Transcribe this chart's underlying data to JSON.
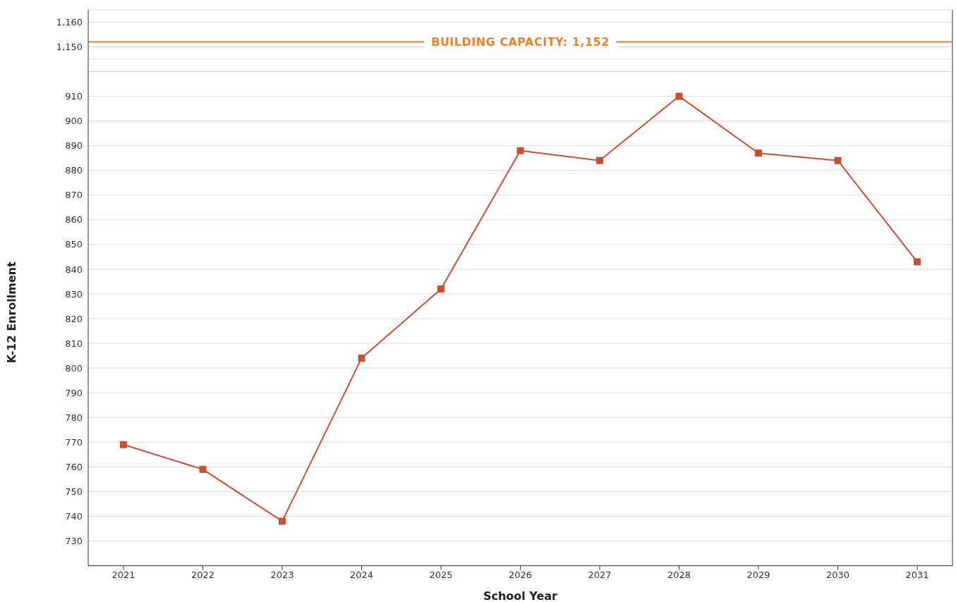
{
  "chart_data": [
    {
      "type": "line",
      "categories": [
        "2021",
        "2022",
        "2023",
        "2024",
        "2025",
        "2026",
        "2027",
        "2028",
        "2029",
        "2030",
        "2031"
      ],
      "ylim": [
        1145,
        1165
      ],
      "yticks": [
        {
          "value": 1150,
          "label": "1,150"
        },
        {
          "value": 1160,
          "label": "1,160"
        }
      ],
      "ref_lines": [
        {
          "axis": "y",
          "value": 1152,
          "label": "BUILDING CAPACITY: 1,152",
          "color": "#f07f2d"
        }
      ],
      "grid": "y",
      "tick_labels": "y"
    },
    {
      "type": "line",
      "xlabel": "School Year",
      "ylabel": "K-12 Enrollment",
      "categories": [
        "2021",
        "2022",
        "2023",
        "2024",
        "2025",
        "2026",
        "2027",
        "2028",
        "2029",
        "2030",
        "2031"
      ],
      "series": [
        {
          "color": "#c9502f",
          "values": [
            769,
            759,
            738,
            804,
            832,
            888,
            884,
            910,
            887,
            884,
            843
          ]
        }
      ],
      "ylim": [
        720,
        925
      ],
      "yticks": [
        730,
        740,
        750,
        760,
        770,
        780,
        790,
        800,
        810,
        820,
        830,
        840,
        850,
        860,
        870,
        880,
        890,
        900,
        910,
        {
          "value": 920,
          "label": null
        }
      ],
      "grid": "y",
      "marker": "square",
      "line_style": "solid"
    }
  ]
}
